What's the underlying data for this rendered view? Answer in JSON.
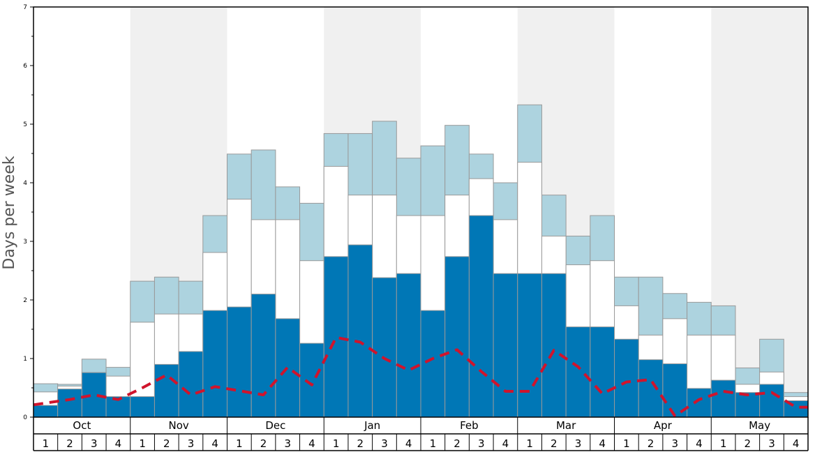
{
  "chart_data": {
    "type": "bar",
    "ylabel": "Days per week",
    "ylim": [
      0,
      7
    ],
    "yticks": [
      0,
      1,
      2,
      3,
      4,
      5,
      6,
      7
    ],
    "months": [
      "Oct",
      "Nov",
      "Dec",
      "Jan",
      "Feb",
      "Mar",
      "Apr",
      "May"
    ],
    "weeks": [
      "1",
      "2",
      "3",
      "4"
    ],
    "shaded_months": [
      "Nov",
      "Jan",
      "Mar",
      "May"
    ],
    "colors": {
      "dark": "#0077b6",
      "middle": "#ffffff",
      "light": "#add3df",
      "line": "#d0142c",
      "shade": "#f0f0f0",
      "bar_edge": "#999999"
    },
    "series": [
      {
        "key": "dark",
        "values": [
          0.2,
          0.48,
          0.76,
          0.35,
          0.35,
          0.9,
          1.12,
          1.82,
          1.88,
          2.1,
          1.68,
          1.26,
          2.74,
          2.94,
          2.38,
          2.45,
          1.82,
          2.74,
          3.44,
          2.45,
          2.45,
          2.45,
          1.54,
          1.54,
          1.33,
          0.98,
          0.91,
          0.49,
          0.63,
          0.42,
          0.56,
          0.28
        ]
      },
      {
        "key": "middle",
        "values": [
          0.43,
          0.53,
          0.76,
          0.7,
          1.62,
          1.76,
          1.76,
          2.81,
          3.72,
          3.37,
          3.37,
          2.67,
          4.28,
          3.79,
          3.79,
          3.44,
          3.44,
          3.79,
          4.07,
          3.37,
          4.35,
          3.09,
          2.6,
          2.67,
          1.9,
          1.4,
          1.68,
          1.4,
          1.4,
          0.56,
          0.77,
          0.35
        ]
      },
      {
        "key": "light",
        "values": [
          0.57,
          0.56,
          0.99,
          0.85,
          2.32,
          2.39,
          2.32,
          3.44,
          4.49,
          4.56,
          3.93,
          3.65,
          4.84,
          4.84,
          5.05,
          4.42,
          4.63,
          4.98,
          4.49,
          4.0,
          5.33,
          3.79,
          3.09,
          3.44,
          2.39,
          2.39,
          2.11,
          1.96,
          1.9,
          0.84,
          1.33,
          0.42
        ]
      },
      {
        "key": "line",
        "values": [
          0.24,
          0.3,
          0.38,
          0.3,
          0.5,
          0.72,
          0.38,
          0.52,
          0.45,
          0.38,
          0.85,
          0.55,
          1.36,
          1.28,
          1.0,
          0.8,
          1.0,
          1.15,
          0.78,
          0.44,
          0.44,
          1.14,
          0.86,
          0.4,
          0.6,
          0.64,
          0.02,
          0.3,
          0.44,
          0.38,
          0.42,
          0.17
        ]
      }
    ]
  }
}
